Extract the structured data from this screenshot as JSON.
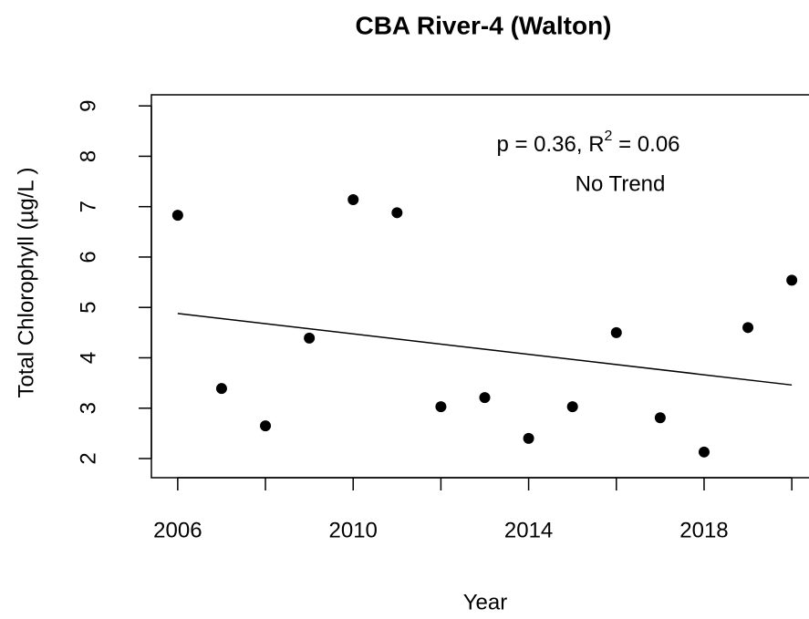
{
  "chart_data": {
    "type": "scatter",
    "title": "CBA River-4 (Walton)",
    "x_label": "Year",
    "y_label": "Total Chlorophyll (µg/L )",
    "annotation": {
      "before": "p = 0.36, R",
      "superscript": "2",
      "after": " = 0.06",
      "line2": "No Trend"
    },
    "x": [
      2006,
      2007,
      2008,
      2009,
      2010,
      2011,
      2012,
      2013,
      2014,
      2015,
      2016,
      2017,
      2018,
      2019,
      2020
    ],
    "values": [
      6.83,
      3.39,
      2.65,
      4.39,
      7.14,
      6.88,
      3.03,
      3.21,
      2.4,
      3.03,
      4.5,
      2.81,
      2.13,
      4.6,
      5.54
    ],
    "color": "#000000",
    "trend": {
      "x": [
        2006,
        2020
      ],
      "values": [
        4.88,
        3.46
      ]
    },
    "xlim": [
      2005.4,
      2020.6
    ],
    "ylim": [
      1.62,
      9.22
    ],
    "xticks": [
      2006,
      2008,
      2010,
      2012,
      2014,
      2016,
      2018,
      2020
    ],
    "xtick_labels": [
      2006,
      2010,
      2014,
      2018
    ],
    "yticks": [
      2,
      3,
      4,
      5,
      6,
      7,
      8,
      9
    ]
  }
}
